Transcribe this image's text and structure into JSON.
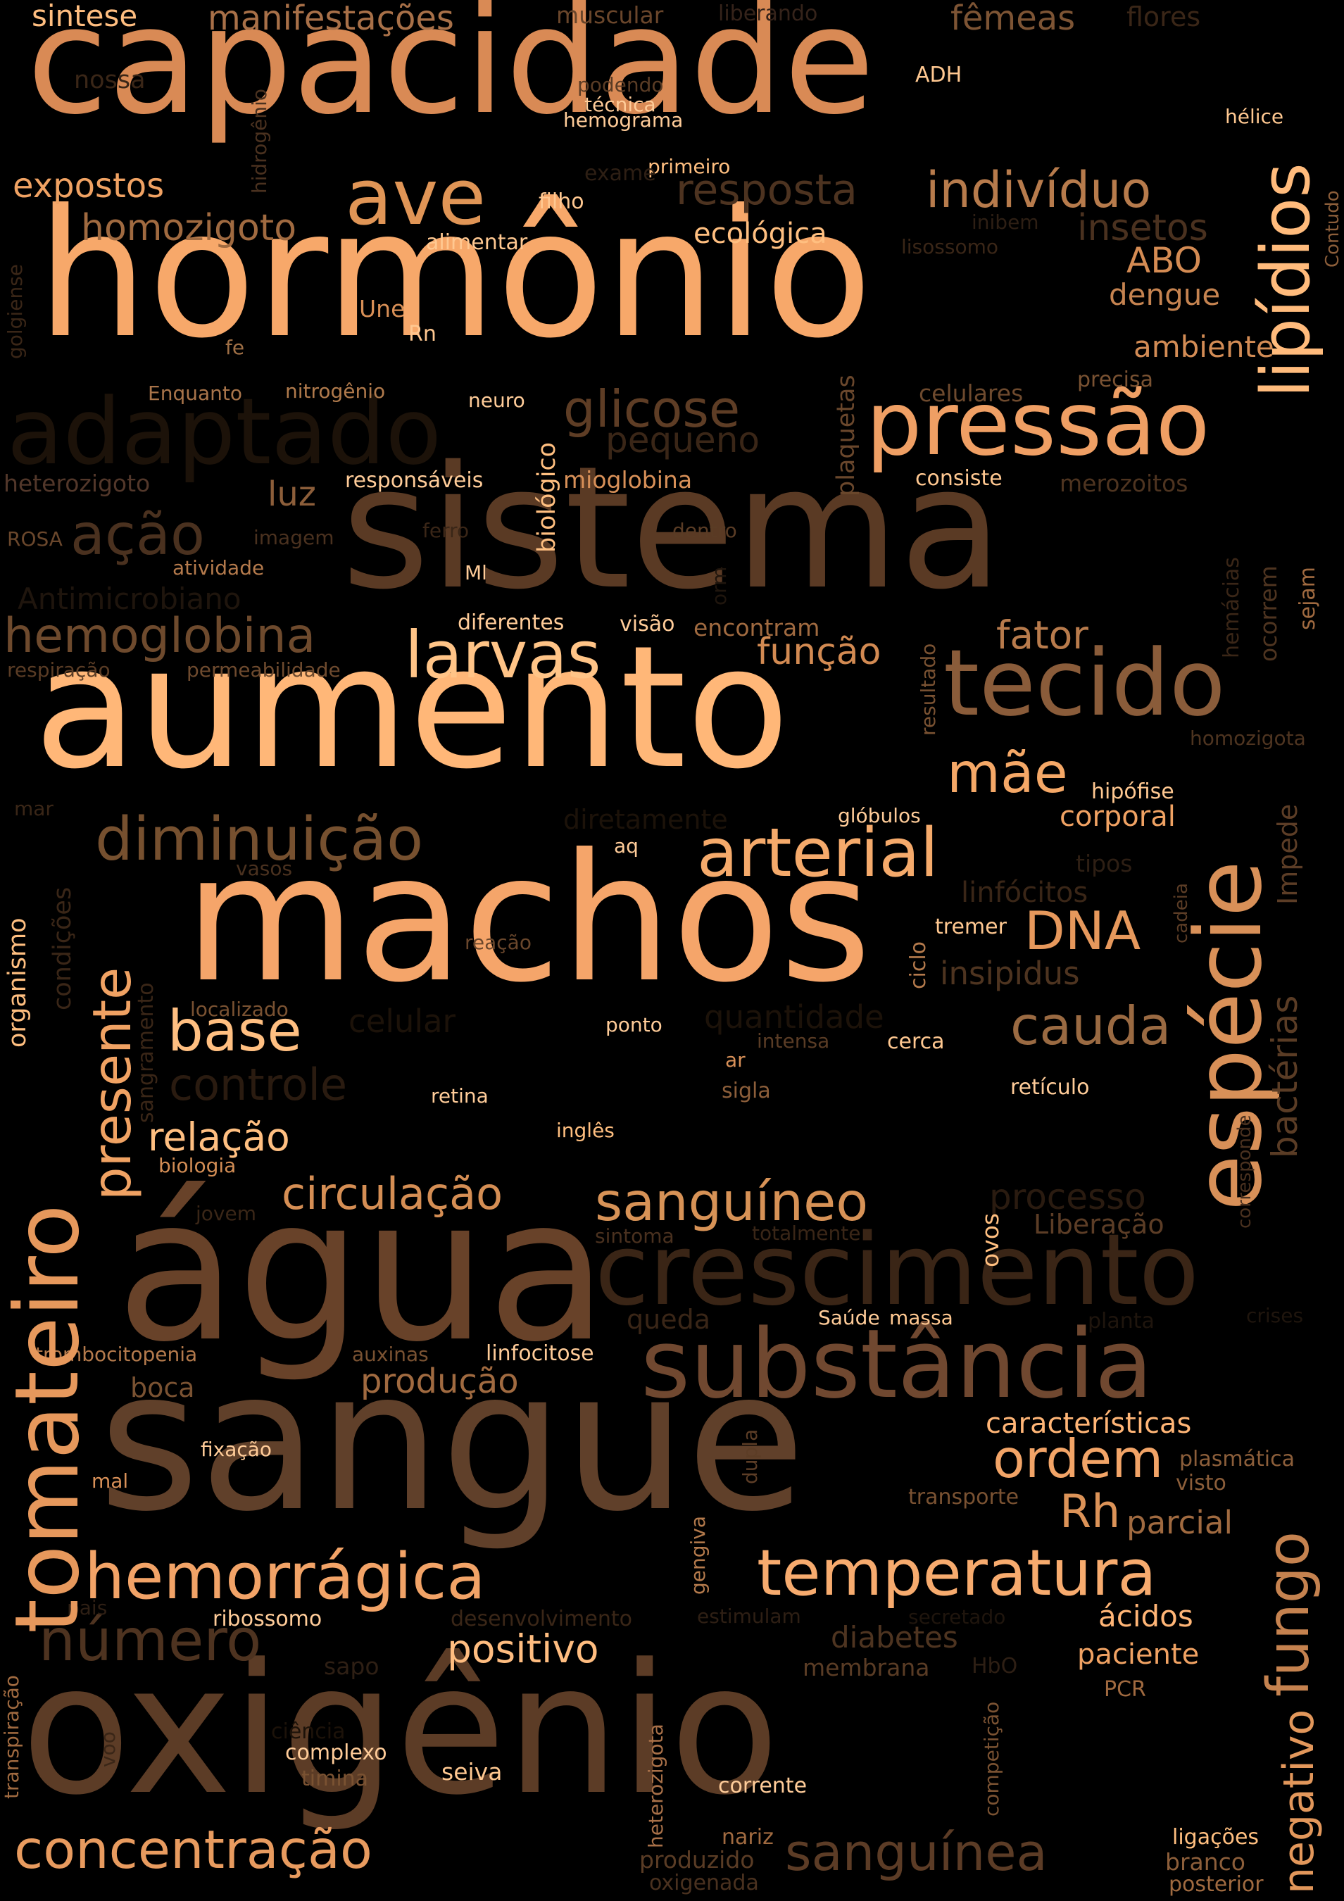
{
  "words": [
    {
      "text": "capacidade",
      "color": "#d98a55"
    },
    {
      "text": "hormônio",
      "color": "#f7a86a"
    },
    {
      "text": "sistema",
      "color": "#5a3a24"
    },
    {
      "text": "aumento",
      "color": "#ffb778"
    },
    {
      "text": "machos",
      "color": "#f5a56a"
    },
    {
      "text": "água",
      "color": "#684229"
    },
    {
      "text": "sangue",
      "color": "#60402a"
    },
    {
      "text": "oxigênio",
      "color": "#5c3c26"
    },
    {
      "text": "pressão",
      "color": "#ef9f64"
    },
    {
      "text": "adaptado",
      "color": "#1c1209"
    },
    {
      "text": "crescimento",
      "color": "#3a2516"
    },
    {
      "text": "substância",
      "color": "#704830"
    },
    {
      "text": "tecido",
      "color": "#8a5c3a"
    },
    {
      "text": "ave",
      "color": "#e09556"
    },
    {
      "text": "indivíduo",
      "color": "#b77b4c"
    },
    {
      "text": "glicose",
      "color": "#5e3d25"
    },
    {
      "text": "diminuição",
      "color": "#76502f"
    },
    {
      "text": "arterial",
      "color": "#f5aa6b"
    },
    {
      "text": "hemoglobina",
      "color": "#6e4a2d"
    },
    {
      "text": "larvas",
      "color": "#ffc487"
    },
    {
      "text": "mãe",
      "color": "#f5a867"
    },
    {
      "text": "DNA",
      "color": "#e6985c"
    },
    {
      "text": "base",
      "color": "#ffbf81"
    },
    {
      "text": "cauda",
      "color": "#9a6a42"
    },
    {
      "text": "controle",
      "color": "#2a1b10"
    },
    {
      "text": "relação",
      "color": "#ffbf81"
    },
    {
      "text": "circulação",
      "color": "#d58e54"
    },
    {
      "text": "sanguíneo",
      "color": "#d79256"
    },
    {
      "text": "hemorrágica",
      "color": "#f2a367"
    },
    {
      "text": "temperatura",
      "color": "#f7ab6e"
    },
    {
      "text": "número",
      "color": "#4e3320"
    },
    {
      "text": "positivo",
      "color": "#ffbd80"
    },
    {
      "text": "concentração",
      "color": "#e89b5f"
    },
    {
      "text": "sanguínea",
      "color": "#5c3c26"
    },
    {
      "text": "ordem",
      "color": "#f2a467"
    },
    {
      "text": "Rh",
      "color": "#dc9358"
    },
    {
      "text": "ação",
      "color": "#4a311f"
    },
    {
      "text": "luz",
      "color": "#8c5e3a"
    },
    {
      "text": "função",
      "color": "#d28a52"
    },
    {
      "text": "fator",
      "color": "#b87b4c"
    },
    {
      "text": "resposta",
      "color": "#4d3320"
    },
    {
      "text": "homozigoto",
      "color": "#a06a40"
    },
    {
      "text": "expostos",
      "color": "#f0a263"
    },
    {
      "text": "insetos",
      "color": "#4a311f"
    },
    {
      "text": "ABO",
      "color": "#d48b53"
    },
    {
      "text": "dengue",
      "color": "#c58350"
    },
    {
      "text": "ambiente",
      "color": "#d38c55"
    },
    {
      "text": "sintese",
      "color": "#ffbe80"
    },
    {
      "text": "manifestações",
      "color": "#a87048"
    },
    {
      "text": "fêmeas",
      "color": "#7d5434"
    },
    {
      "text": "flores",
      "color": "#3a2617"
    },
    {
      "text": "muscular",
      "color": "#6a462b"
    },
    {
      "text": "liberando",
      "color": "#35231a"
    },
    {
      "text": "nossa",
      "color": "#3a2617"
    },
    {
      "text": "podendo",
      "color": "#5a3c25"
    },
    {
      "text": "técnica",
      "color": "#ffcc99"
    },
    {
      "text": "hemograma",
      "color": "#ffcc99"
    },
    {
      "text": "ADH",
      "color": "#ffc891"
    },
    {
      "text": "hélice",
      "color": "#ffc891"
    },
    {
      "text": "primeiro",
      "color": "#ffbf80"
    },
    {
      "text": "exame",
      "color": "#2e1f14"
    },
    {
      "text": "filho",
      "color": "#ffc891"
    },
    {
      "text": "ecológica",
      "color": "#ffbf80"
    },
    {
      "text": "alimentar",
      "color": "#ffc891"
    },
    {
      "text": "inibem",
      "color": "#2e1f14"
    },
    {
      "text": "lisossomo",
      "color": "#3a2617"
    },
    {
      "text": "Une",
      "color": "#d88f56"
    },
    {
      "text": "Rn",
      "color": "#ffc891"
    },
    {
      "text": "fe",
      "color": "#a07046"
    },
    {
      "text": "Enquanto",
      "color": "#a8744a"
    },
    {
      "text": "nitrogênio",
      "color": "#b07a4c"
    },
    {
      "text": "neuro",
      "color": "#ffcc99"
    },
    {
      "text": "celulares",
      "color": "#6e4a2e"
    },
    {
      "text": "precisa",
      "color": "#7a5232"
    },
    {
      "text": "pequeno",
      "color": "#3a2617"
    },
    {
      "text": "heterozigoto",
      "color": "#52372a"
    },
    {
      "text": "responsáveis",
      "color": "#ffcc99"
    },
    {
      "text": "mioglobina",
      "color": "#d89058"
    },
    {
      "text": "consiste",
      "color": "#ffc891"
    },
    {
      "text": "merozoitos",
      "color": "#4e3420"
    },
    {
      "text": "ROSA",
      "color": "#6a472c"
    },
    {
      "text": "imagem",
      "color": "#4a311f"
    },
    {
      "text": "ferro",
      "color": "#3a2617"
    },
    {
      "text": "dentro",
      "color": "#5a3c25"
    },
    {
      "text": "atividade",
      "color": "#b47a4c"
    },
    {
      "text": "Ml",
      "color": "#ffcc99"
    },
    {
      "text": "Antimicrobiano",
      "color": "#1f150d"
    },
    {
      "text": "diferentes",
      "color": "#ffcc99"
    },
    {
      "text": "visão",
      "color": "#ffcc99"
    },
    {
      "text": "encontram",
      "color": "#a06a40"
    },
    {
      "text": "respiração",
      "color": "#5a3c25"
    },
    {
      "text": "permeabilidade",
      "color": "#6e4a2e"
    },
    {
      "text": "homozigota",
      "color": "#4e3420"
    },
    {
      "text": "mar",
      "color": "#3a2617"
    },
    {
      "text": "diretamente",
      "color": "#1c1209"
    },
    {
      "text": "hipófise",
      "color": "#ffc891"
    },
    {
      "text": "glóbulos",
      "color": "#ffcc99"
    },
    {
      "text": "corporal",
      "color": "#f0a263"
    },
    {
      "text": "aq",
      "color": "#ffcc99"
    },
    {
      "text": "vasos",
      "color": "#4a311f"
    },
    {
      "text": "tipos",
      "color": "#2e1f14"
    },
    {
      "text": "linfócitos",
      "color": "#3a2617"
    },
    {
      "text": "tremer",
      "color": "#ffc891"
    },
    {
      "text": "reação",
      "color": "#6a472c"
    },
    {
      "text": "insipidus",
      "color": "#4e3420"
    },
    {
      "text": "localizado",
      "color": "#7a5232"
    },
    {
      "text": "celular",
      "color": "#1c1209"
    },
    {
      "text": "ponto",
      "color": "#ffcc99"
    },
    {
      "text": "quantidade",
      "color": "#1c1209"
    },
    {
      "text": "intensa",
      "color": "#5a3c25"
    },
    {
      "text": "cerca",
      "color": "#ffc891"
    },
    {
      "text": "ar",
      "color": "#d89058"
    },
    {
      "text": "retina",
      "color": "#ffcc99"
    },
    {
      "text": "sigla",
      "color": "#8c5e3a"
    },
    {
      "text": "retículo",
      "color": "#ffcc99"
    },
    {
      "text": "inglês",
      "color": "#ffbf80"
    },
    {
      "text": "biologia",
      "color": "#d18c54"
    },
    {
      "text": "jovem",
      "color": "#3a2617"
    },
    {
      "text": "sintoma",
      "color": "#4a311f"
    },
    {
      "text": "totalmente",
      "color": "#3a2617"
    },
    {
      "text": "processo",
      "color": "#2a1b10"
    },
    {
      "text": "Liberação",
      "color": "#5c3d26"
    },
    {
      "text": "queda",
      "color": "#3a2617"
    },
    {
      "text": "Saúde",
      "color": "#ffcc99"
    },
    {
      "text": "massa",
      "color": "#ffc891"
    },
    {
      "text": "planta",
      "color": "#1f150d"
    },
    {
      "text": "crises",
      "color": "#1f150d"
    },
    {
      "text": "trombocitopenia",
      "color": "#b47a4c"
    },
    {
      "text": "auxinas",
      "color": "#7a5232"
    },
    {
      "text": "linfocitose",
      "color": "#ffcc99"
    },
    {
      "text": "boca",
      "color": "#7a5232"
    },
    {
      "text": "produção",
      "color": "#a06a40"
    },
    {
      "text": "características",
      "color": "#ffb576"
    },
    {
      "text": "plasmática",
      "color": "#8c5e3a"
    },
    {
      "text": "visto",
      "color": "#8c5e3a"
    },
    {
      "text": "fixação",
      "color": "#ffcc99"
    },
    {
      "text": "mal",
      "color": "#d89058"
    },
    {
      "text": "transporte",
      "color": "#7a5232"
    },
    {
      "text": "parcial",
      "color": "#a06a40"
    },
    {
      "text": "pais",
      "color": "#2e1f14"
    },
    {
      "text": "ribossomo",
      "color": "#ffcc99"
    },
    {
      "text": "desenvolvimento",
      "color": "#3a2617"
    },
    {
      "text": "estimulam",
      "color": "#2e1f14"
    },
    {
      "text": "secretado",
      "color": "#1f150d"
    },
    {
      "text": "ácidos",
      "color": "#ffb576"
    },
    {
      "text": "diabetes",
      "color": "#4e3420"
    },
    {
      "text": "paciente",
      "color": "#f0a263"
    },
    {
      "text": "sapo",
      "color": "#2e1f14"
    },
    {
      "text": "membrana",
      "color": "#5a3c25"
    },
    {
      "text": "HbO",
      "color": "#2e1f14"
    },
    {
      "text": "PCR",
      "color": "#a06a40"
    },
    {
      "text": "ciência",
      "color": "#1c1209"
    },
    {
      "text": "complexo",
      "color": "#ffcc99"
    },
    {
      "text": "timina",
      "color": "#7a5232"
    },
    {
      "text": "seiva",
      "color": "#ffc891"
    },
    {
      "text": "corrente",
      "color": "#ffcc99"
    },
    {
      "text": "nariz",
      "color": "#a06a40"
    },
    {
      "text": "produzido",
      "color": "#5a3c25"
    },
    {
      "text": "oxigenada",
      "color": "#4a311f"
    },
    {
      "text": "ligações",
      "color": "#ffbf80"
    },
    {
      "text": "branco",
      "color": "#8c5e3a"
    },
    {
      "text": "posterior",
      "color": "#a06a40"
    },
    {
      "text": "lipídios",
      "color": "#ffbb7c"
    },
    {
      "text": "espécie",
      "color": "#d89058"
    },
    {
      "text": "tomateiro",
      "color": "#e6985c"
    },
    {
      "text": "presente",
      "color": "#f0a263"
    },
    {
      "text": "fungo",
      "color": "#c5824f"
    },
    {
      "text": "negativo",
      "color": "#e2975b"
    },
    {
      "text": "bactérias",
      "color": "#5a3c25"
    },
    {
      "text": "Impede",
      "color": "#5c3d26"
    },
    {
      "text": "ocorrem",
      "color": "#4e3420"
    },
    {
      "text": "sejam",
      "color": "#a06a40"
    },
    {
      "text": "hemácias",
      "color": "#3a2617"
    },
    {
      "text": "organismo",
      "color": "#ffbf80"
    },
    {
      "text": "condições",
      "color": "#3a2617"
    },
    {
      "text": "sangramento",
      "color": "#3a2617"
    },
    {
      "text": "biológico",
      "color": "#ffbf80"
    },
    {
      "text": "plaquetas",
      "color": "#6a472c"
    },
    {
      "text": "hidrogênio",
      "color": "#4a311f"
    },
    {
      "text": "golgiense",
      "color": "#3a2617"
    },
    {
      "text": "Contudo",
      "color": "#8c5e3a"
    },
    {
      "text": "resultado",
      "color": "#7a5232"
    },
    {
      "text": "ciclo",
      "color": "#b47a4c"
    },
    {
      "text": "cadeia",
      "color": "#5c3d26"
    },
    {
      "text": "corresponde",
      "color": "#4a311f"
    },
    {
      "text": "ovos",
      "color": "#ffbf80"
    },
    {
      "text": "dupla",
      "color": "#5c3d26"
    },
    {
      "text": "gengiva",
      "color": "#b47a4c"
    },
    {
      "text": "heterozigota",
      "color": "#a87048"
    },
    {
      "text": "competição",
      "color": "#7a5232"
    },
    {
      "text": "transpiração",
      "color": "#a06a40"
    },
    {
      "text": "voo",
      "color": "#3a2617"
    },
    {
      "text": "orm",
      "color": "#1f150d"
    }
  ]
}
